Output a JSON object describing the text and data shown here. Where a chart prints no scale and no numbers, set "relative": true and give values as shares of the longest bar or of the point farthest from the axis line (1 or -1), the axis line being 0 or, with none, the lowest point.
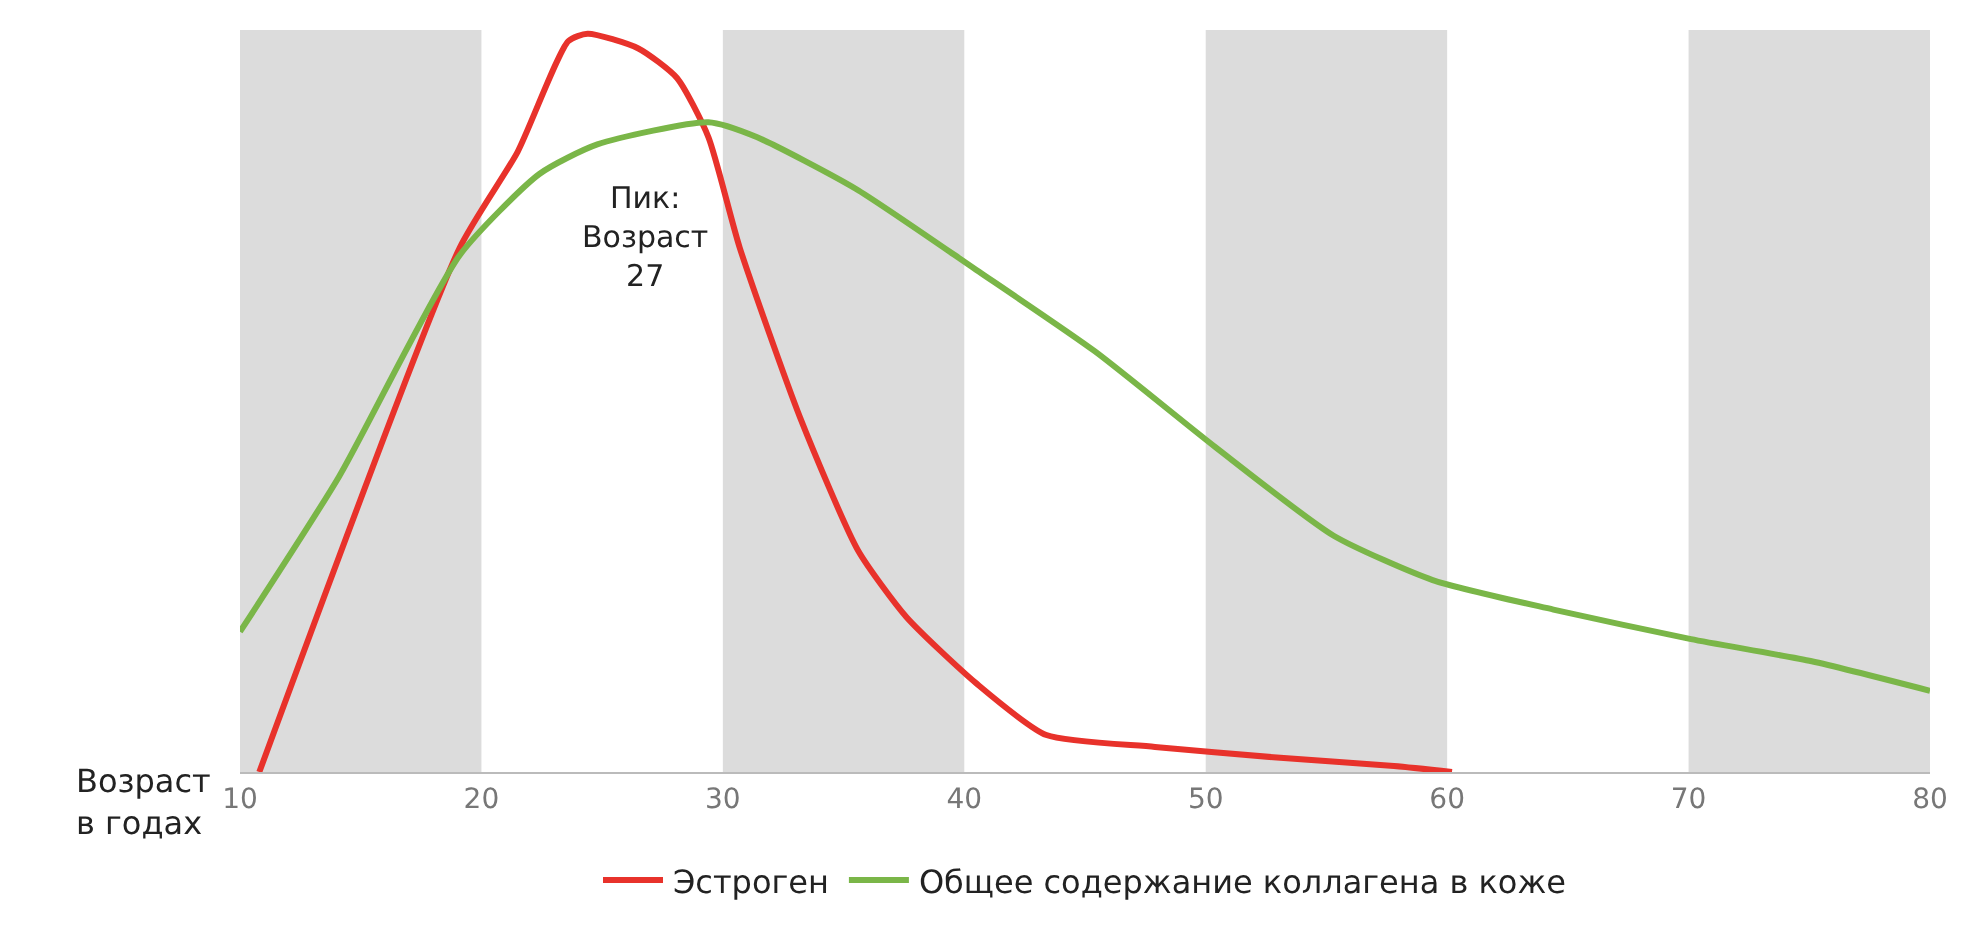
{
  "chart_data": {
    "type": "line",
    "relative": true,
    "xlabel": "Возраст\nв годах",
    "xlim": [
      10,
      80
    ],
    "xticks": [
      10,
      20,
      30,
      40,
      50,
      60,
      70,
      80
    ],
    "series": [
      {
        "name": "Эстроген",
        "color": "#e8322b",
        "x": [
          10.8,
          19.1,
          21.5,
          23.6,
          24.4,
          26.5,
          28.1,
          29.4,
          30.7,
          33.2,
          35.6,
          37.6,
          40.5,
          43.4,
          47.9,
          52.8,
          57.8,
          60.2
        ],
        "values": [
          0,
          0.71,
          0.84,
          0.99,
          1,
          0.98,
          0.94,
          0.86,
          0.71,
          0.48,
          0.3,
          0.21,
          0.12,
          0.05,
          0.034,
          0.02,
          0.008,
          0
        ]
      },
      {
        "name": "Общее содержание коллагена в коже",
        "color": "#7ab648",
        "x": [
          10,
          14.1,
          19.1,
          22.4,
          24.8,
          29.4,
          31.4,
          35.5,
          40.5,
          45.4,
          50.4,
          55.3,
          59.4,
          64.4,
          70.1,
          75.1,
          80
        ],
        "values": [
          0.19,
          0.4,
          0.7,
          0.81,
          0.85,
          0.88,
          0.86,
          0.79,
          0.68,
          0.57,
          0.44,
          0.32,
          0.26,
          0.22,
          0.18,
          0.15,
          0.11
        ]
      }
    ],
    "bands": [
      {
        "axis": "x",
        "from": 10,
        "to": 20,
        "color": "#dcdcdc"
      },
      {
        "axis": "x",
        "from": 30,
        "to": 40,
        "color": "#dcdcdc"
      },
      {
        "axis": "x",
        "from": 50,
        "to": 60,
        "color": "#dcdcdc"
      },
      {
        "axis": "x",
        "from": 70,
        "to": 80,
        "color": "#dcdcdc"
      }
    ],
    "annotations": [
      "Пик:\nВозраст\n27"
    ],
    "legend": "bottom",
    "line_style": "solid",
    "marker": "none",
    "grid": false
  }
}
